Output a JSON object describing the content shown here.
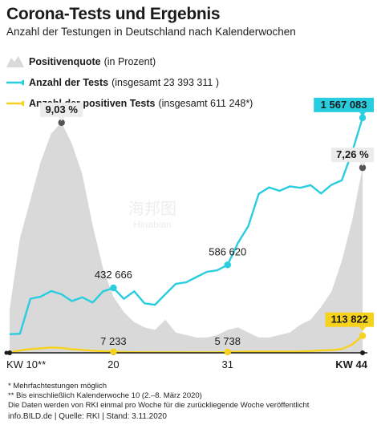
{
  "header": {
    "title": "Corona-Tests und Ergebnis",
    "subtitle": "Anzahl der Testungen in Deutschland nach Kalenderwochen"
  },
  "legend": [
    {
      "bold": "Positivenquote",
      "rest": "(in Prozent)"
    },
    {
      "bold": "Anzahl der Tests",
      "rest": "(insgesamt 23 393 311 )"
    },
    {
      "bold": "Anzahl der positiven Tests",
      "rest": "(insgesamt 611 248*)"
    }
  ],
  "colors": {
    "quote": "#d9d9d9",
    "tests": "#29cde0",
    "positive": "#f7d21c",
    "dot": "#555555",
    "axis": "#1a1a1a"
  },
  "chart_data": {
    "type": "line",
    "x_labels": [
      "KW 10**",
      "20",
      "31",
      "KW 44"
    ],
    "x_start": 10,
    "x_end": 44,
    "x_range": [
      9,
      45
    ],
    "series": [
      {
        "name": "Positivenquote",
        "unit": "%",
        "ylim": [
          0,
          10
        ],
        "x": [
          10,
          11,
          12,
          13,
          14,
          15,
          16,
          17,
          18,
          19,
          20,
          21,
          22,
          23,
          24,
          25,
          26,
          27,
          28,
          29,
          30,
          31,
          32,
          33,
          34,
          35,
          36,
          37,
          38,
          39,
          40,
          41,
          42,
          43,
          44
        ],
        "values": [
          1.7,
          4.5,
          6.0,
          7.5,
          8.6,
          9.03,
          8.2,
          7.0,
          5.0,
          3.3,
          2.2,
          1.6,
          1.2,
          1.0,
          0.9,
          1.3,
          0.8,
          0.7,
          0.6,
          0.6,
          0.7,
          0.9,
          1.0,
          0.8,
          0.6,
          0.6,
          0.7,
          0.8,
          1.1,
          1.3,
          1.8,
          2.4,
          3.6,
          5.2,
          7.26
        ]
      },
      {
        "name": "Anzahl der Tests",
        "ylim": [
          0,
          1700000
        ],
        "x": [
          10,
          11,
          12,
          13,
          14,
          15,
          16,
          17,
          18,
          19,
          20,
          21,
          22,
          23,
          24,
          25,
          26,
          27,
          28,
          29,
          30,
          31,
          32,
          33,
          34,
          35,
          36,
          37,
          38,
          39,
          40,
          41,
          42,
          43,
          44
        ],
        "values": [
          124000,
          127000,
          361000,
          375000,
          412000,
          390000,
          345000,
          370000,
          335000,
          410000,
          432666,
          360000,
          410000,
          330000,
          320000,
          390000,
          460000,
          470000,
          505000,
          540000,
          550000,
          586620,
          733000,
          845000,
          1060000,
          1103000,
          1080000,
          1110000,
          1100000,
          1118000,
          1062000,
          1120000,
          1150000,
          1340000,
          1567083
        ]
      },
      {
        "name": "Anzahl der positiven Tests",
        "ylim": [
          0,
          1700000
        ],
        "x": [
          10,
          11,
          12,
          13,
          14,
          15,
          16,
          17,
          18,
          19,
          20,
          21,
          22,
          23,
          24,
          25,
          26,
          27,
          28,
          29,
          30,
          31,
          32,
          33,
          34,
          35,
          36,
          37,
          38,
          39,
          40,
          41,
          42,
          43,
          44
        ],
        "values": [
          2000,
          16000,
          25000,
          30000,
          36000,
          32000,
          24000,
          20000,
          14000,
          10000,
          7233,
          5500,
          4500,
          4000,
          3800,
          4000,
          3800,
          3200,
          3000,
          3000,
          3500,
          5738,
          7000,
          8500,
          8500,
          7500,
          8000,
          8500,
          9200,
          12000,
          16000,
          18000,
          25000,
          55000,
          113822
        ]
      }
    ],
    "labels": [
      {
        "text": "9,03 %",
        "series": 0,
        "x": 15,
        "boxed": true
      },
      {
        "text": "7,26 %",
        "series": 0,
        "x": 44,
        "boxed": true
      },
      {
        "text": "432 666",
        "series": 1,
        "x": 20,
        "boxed": false
      },
      {
        "text": "586 620",
        "series": 1,
        "x": 31,
        "boxed": false
      },
      {
        "text": "1 567 083",
        "series": 1,
        "x": 44,
        "boxed": true
      },
      {
        "text": "7 233",
        "series": 2,
        "x": 20,
        "boxed": false
      },
      {
        "text": "5 738",
        "series": 2,
        "x": 31,
        "boxed": false
      },
      {
        "text": "113 822",
        "series": 2,
        "x": 44,
        "boxed": true
      }
    ]
  },
  "footnotes": [
    "* Mehrfachtestungen möglich",
    "** Bis einschließlich Kalenderwoche 10 (2.–8. März 2020)",
    "Die Daten werden von RKI einmal pro Woche für die zurückliegende Woche veröffentlicht"
  ],
  "source": "info.BILD.de | Quelle: RKI | Stand: 3.11.2020",
  "watermark": {
    "cn": "海邦图",
    "en": "Hinabian"
  }
}
